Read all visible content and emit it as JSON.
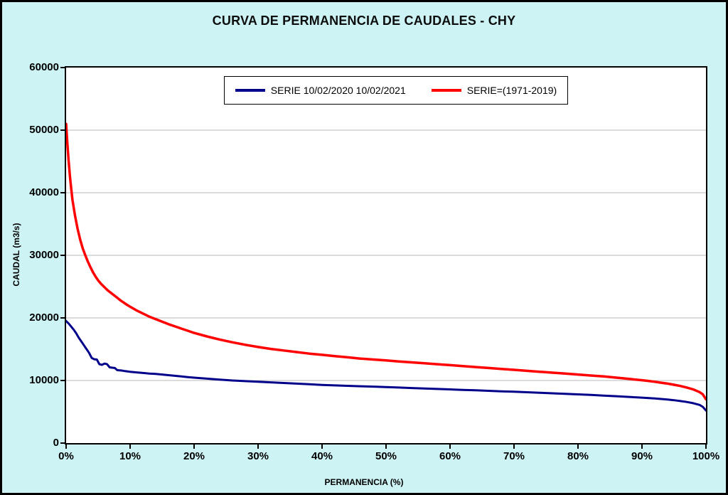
{
  "page": {
    "background_color": "#cdf3f5",
    "title": "CURVA DE PERMANENCIA DE CAUDALES - CHY"
  },
  "chart_data": {
    "type": "line",
    "title": "CURVA DE PERMANENCIA DE CAUDALES - CHY",
    "xlabel": "PERMANENCIA (%)",
    "ylabel": "CAUDAL (m3/s)",
    "xlim": [
      0,
      100
    ],
    "ylim": [
      0,
      60000
    ],
    "x_ticks": [
      "0%",
      "10%",
      "20%",
      "30%",
      "40%",
      "50%",
      "60%",
      "70%",
      "80%",
      "90%",
      "100%"
    ],
    "y_ticks": [
      0,
      10000,
      20000,
      30000,
      40000,
      50000,
      60000
    ],
    "grid": "horizontal",
    "gridline_color": "#b8b8b8",
    "legend_position": "top-center",
    "series": [
      {
        "name": "SERIE 10/02/2020 10/02/2021",
        "color": "#00008b",
        "stroke_width": 3,
        "points": [
          [
            0,
            19500
          ],
          [
            0.4,
            19100
          ],
          [
            0.8,
            18600
          ],
          [
            1.2,
            18100
          ],
          [
            1.6,
            17500
          ],
          [
            2,
            16800
          ],
          [
            2.4,
            16200
          ],
          [
            2.8,
            15600
          ],
          [
            3.2,
            15000
          ],
          [
            3.6,
            14400
          ],
          [
            4,
            13600
          ],
          [
            4.4,
            13400
          ],
          [
            4.8,
            13350
          ],
          [
            5.2,
            12600
          ],
          [
            5.6,
            12500
          ],
          [
            6,
            12700
          ],
          [
            6.4,
            12600
          ],
          [
            6.8,
            12100
          ],
          [
            7.2,
            12050
          ],
          [
            7.6,
            12000
          ],
          [
            8,
            11650
          ],
          [
            8.6,
            11600
          ],
          [
            9.2,
            11500
          ],
          [
            10,
            11400
          ],
          [
            11,
            11300
          ],
          [
            12,
            11200
          ],
          [
            13,
            11100
          ],
          [
            14,
            11050
          ],
          [
            15,
            10950
          ],
          [
            16,
            10850
          ],
          [
            17,
            10750
          ],
          [
            18,
            10650
          ],
          [
            19,
            10550
          ],
          [
            20,
            10450
          ],
          [
            22,
            10300
          ],
          [
            24,
            10150
          ],
          [
            26,
            10000
          ],
          [
            28,
            9900
          ],
          [
            30,
            9800
          ],
          [
            32,
            9700
          ],
          [
            34,
            9600
          ],
          [
            36,
            9500
          ],
          [
            38,
            9400
          ],
          [
            40,
            9300
          ],
          [
            42,
            9220
          ],
          [
            44,
            9150
          ],
          [
            46,
            9080
          ],
          [
            48,
            9020
          ],
          [
            50,
            8950
          ],
          [
            52,
            8880
          ],
          [
            54,
            8800
          ],
          [
            56,
            8730
          ],
          [
            58,
            8650
          ],
          [
            60,
            8580
          ],
          [
            62,
            8500
          ],
          [
            64,
            8430
          ],
          [
            66,
            8350
          ],
          [
            68,
            8270
          ],
          [
            70,
            8200
          ],
          [
            72,
            8120
          ],
          [
            74,
            8040
          ],
          [
            76,
            7960
          ],
          [
            78,
            7870
          ],
          [
            80,
            7780
          ],
          [
            82,
            7690
          ],
          [
            84,
            7590
          ],
          [
            86,
            7490
          ],
          [
            88,
            7380
          ],
          [
            90,
            7260
          ],
          [
            92,
            7120
          ],
          [
            93,
            7040
          ],
          [
            94,
            6950
          ],
          [
            95,
            6850
          ],
          [
            96,
            6720
          ],
          [
            97,
            6570
          ],
          [
            98,
            6380
          ],
          [
            99,
            6100
          ],
          [
            99.5,
            5800
          ],
          [
            100,
            5200
          ]
        ]
      },
      {
        "name": "SERIE=(1971-2019)",
        "color": "#ff0000",
        "stroke_width": 3.5,
        "points": [
          [
            0,
            51000
          ],
          [
            0.2,
            47800
          ],
          [
            0.4,
            45000
          ],
          [
            0.6,
            42600
          ],
          [
            0.8,
            40600
          ],
          [
            1,
            38800
          ],
          [
            1.4,
            36300
          ],
          [
            1.8,
            34200
          ],
          [
            2.2,
            32500
          ],
          [
            2.6,
            31100
          ],
          [
            3,
            30000
          ],
          [
            3.4,
            29000
          ],
          [
            3.8,
            28100
          ],
          [
            4.2,
            27300
          ],
          [
            4.6,
            26600
          ],
          [
            5,
            26000
          ],
          [
            5.5,
            25400
          ],
          [
            6,
            24900
          ],
          [
            6.5,
            24400
          ],
          [
            7,
            24000
          ],
          [
            7.5,
            23600
          ],
          [
            8,
            23200
          ],
          [
            8.5,
            22800
          ],
          [
            9,
            22450
          ],
          [
            9.5,
            22100
          ],
          [
            10,
            21800
          ],
          [
            11,
            21200
          ],
          [
            12,
            20700
          ],
          [
            13,
            20200
          ],
          [
            14,
            19800
          ],
          [
            15,
            19400
          ],
          [
            16,
            19000
          ],
          [
            17,
            18650
          ],
          [
            18,
            18300
          ],
          [
            19,
            17950
          ],
          [
            20,
            17600
          ],
          [
            22,
            17050
          ],
          [
            24,
            16550
          ],
          [
            26,
            16100
          ],
          [
            28,
            15700
          ],
          [
            30,
            15350
          ],
          [
            32,
            15050
          ],
          [
            34,
            14800
          ],
          [
            36,
            14550
          ],
          [
            38,
            14300
          ],
          [
            40,
            14100
          ],
          [
            42,
            13900
          ],
          [
            44,
            13700
          ],
          [
            46,
            13500
          ],
          [
            48,
            13350
          ],
          [
            50,
            13200
          ],
          [
            52,
            13050
          ],
          [
            54,
            12900
          ],
          [
            56,
            12750
          ],
          [
            58,
            12600
          ],
          [
            60,
            12450
          ],
          [
            62,
            12300
          ],
          [
            64,
            12150
          ],
          [
            66,
            12000
          ],
          [
            68,
            11850
          ],
          [
            70,
            11700
          ],
          [
            72,
            11550
          ],
          [
            74,
            11400
          ],
          [
            76,
            11250
          ],
          [
            78,
            11100
          ],
          [
            80,
            10950
          ],
          [
            82,
            10800
          ],
          [
            84,
            10650
          ],
          [
            86,
            10450
          ],
          [
            88,
            10250
          ],
          [
            90,
            10050
          ],
          [
            91,
            9930
          ],
          [
            92,
            9800
          ],
          [
            93,
            9650
          ],
          [
            94,
            9500
          ],
          [
            95,
            9320
          ],
          [
            96,
            9120
          ],
          [
            97,
            8880
          ],
          [
            98,
            8580
          ],
          [
            99,
            8150
          ],
          [
            99.5,
            7800
          ],
          [
            100,
            7000
          ]
        ]
      }
    ]
  }
}
